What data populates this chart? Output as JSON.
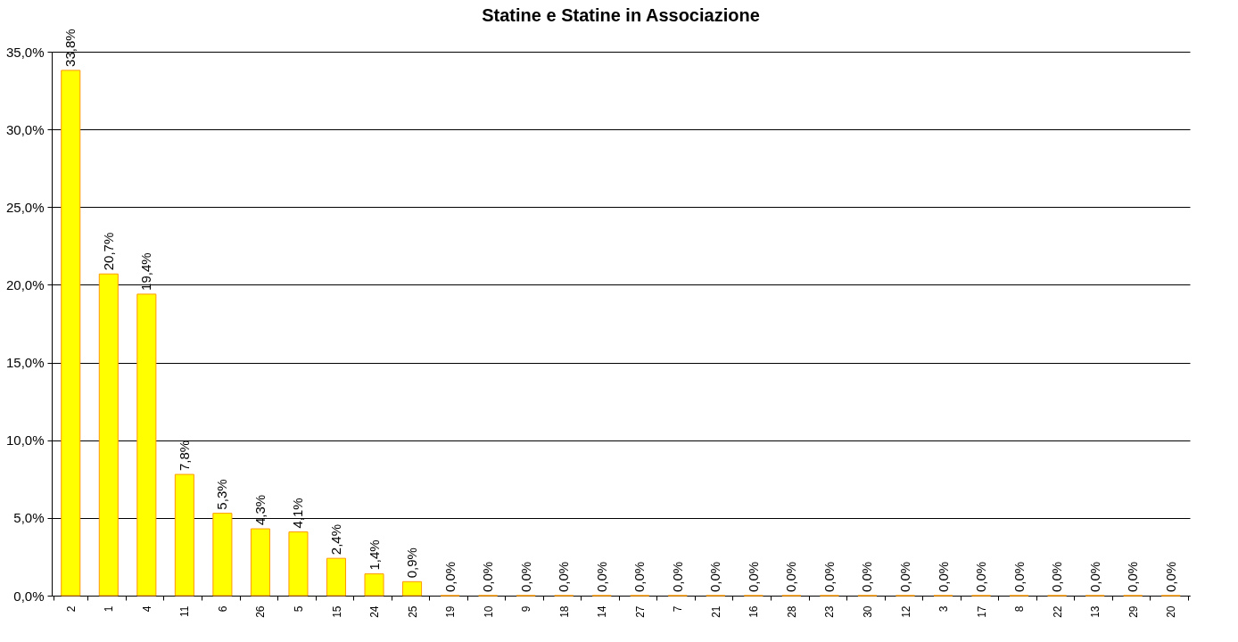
{
  "chart_data": {
    "type": "bar",
    "title": "Statine e Statine in Associazione",
    "categories": [
      "2",
      "1",
      "4",
      "11",
      "6",
      "26",
      "5",
      "15",
      "24",
      "25",
      "19",
      "10",
      "9",
      "18",
      "14",
      "27",
      "7",
      "21",
      "16",
      "28",
      "23",
      "30",
      "12",
      "3",
      "17",
      "8",
      "22",
      "13",
      "29",
      "20"
    ],
    "values": [
      33.8,
      20.7,
      19.4,
      7.8,
      5.3,
      4.3,
      4.1,
      2.4,
      1.4,
      0.9,
      0,
      0,
      0,
      0,
      0,
      0,
      0,
      0,
      0,
      0,
      0,
      0,
      0,
      0,
      0,
      0,
      0,
      0,
      0,
      0
    ],
    "value_labels": [
      "33,8%",
      "20,7%",
      "19,4%",
      "7,8%",
      "5,3%",
      "4,3%",
      "4,1%",
      "2,4%",
      "1,4%",
      "0,9%",
      "0,0%",
      "0,0%",
      "0,0%",
      "0,0%",
      "0,0%",
      "0,0%",
      "0,0%",
      "0,0%",
      "0,0%",
      "0,0%",
      "0,0%",
      "0,0%",
      "0,0%",
      "0,0%",
      "0,0%",
      "0,0%",
      "0,0%",
      "0,0%",
      "0,0%",
      "0,0%"
    ],
    "color": "#ffff00",
    "ylim": [
      0,
      35
    ],
    "yticks": [
      {
        "value": 0,
        "label": "0,0%"
      },
      {
        "value": 5,
        "label": "5,0%"
      },
      {
        "value": 10,
        "label": "10,0%"
      },
      {
        "value": 15,
        "label": "15,0%"
      },
      {
        "value": 20,
        "label": "20,0%"
      },
      {
        "value": 25,
        "label": "25,0%"
      },
      {
        "value": 30,
        "label": "30,0%"
      },
      {
        "value": 35,
        "label": "35,0%"
      }
    ],
    "grid": "y"
  }
}
